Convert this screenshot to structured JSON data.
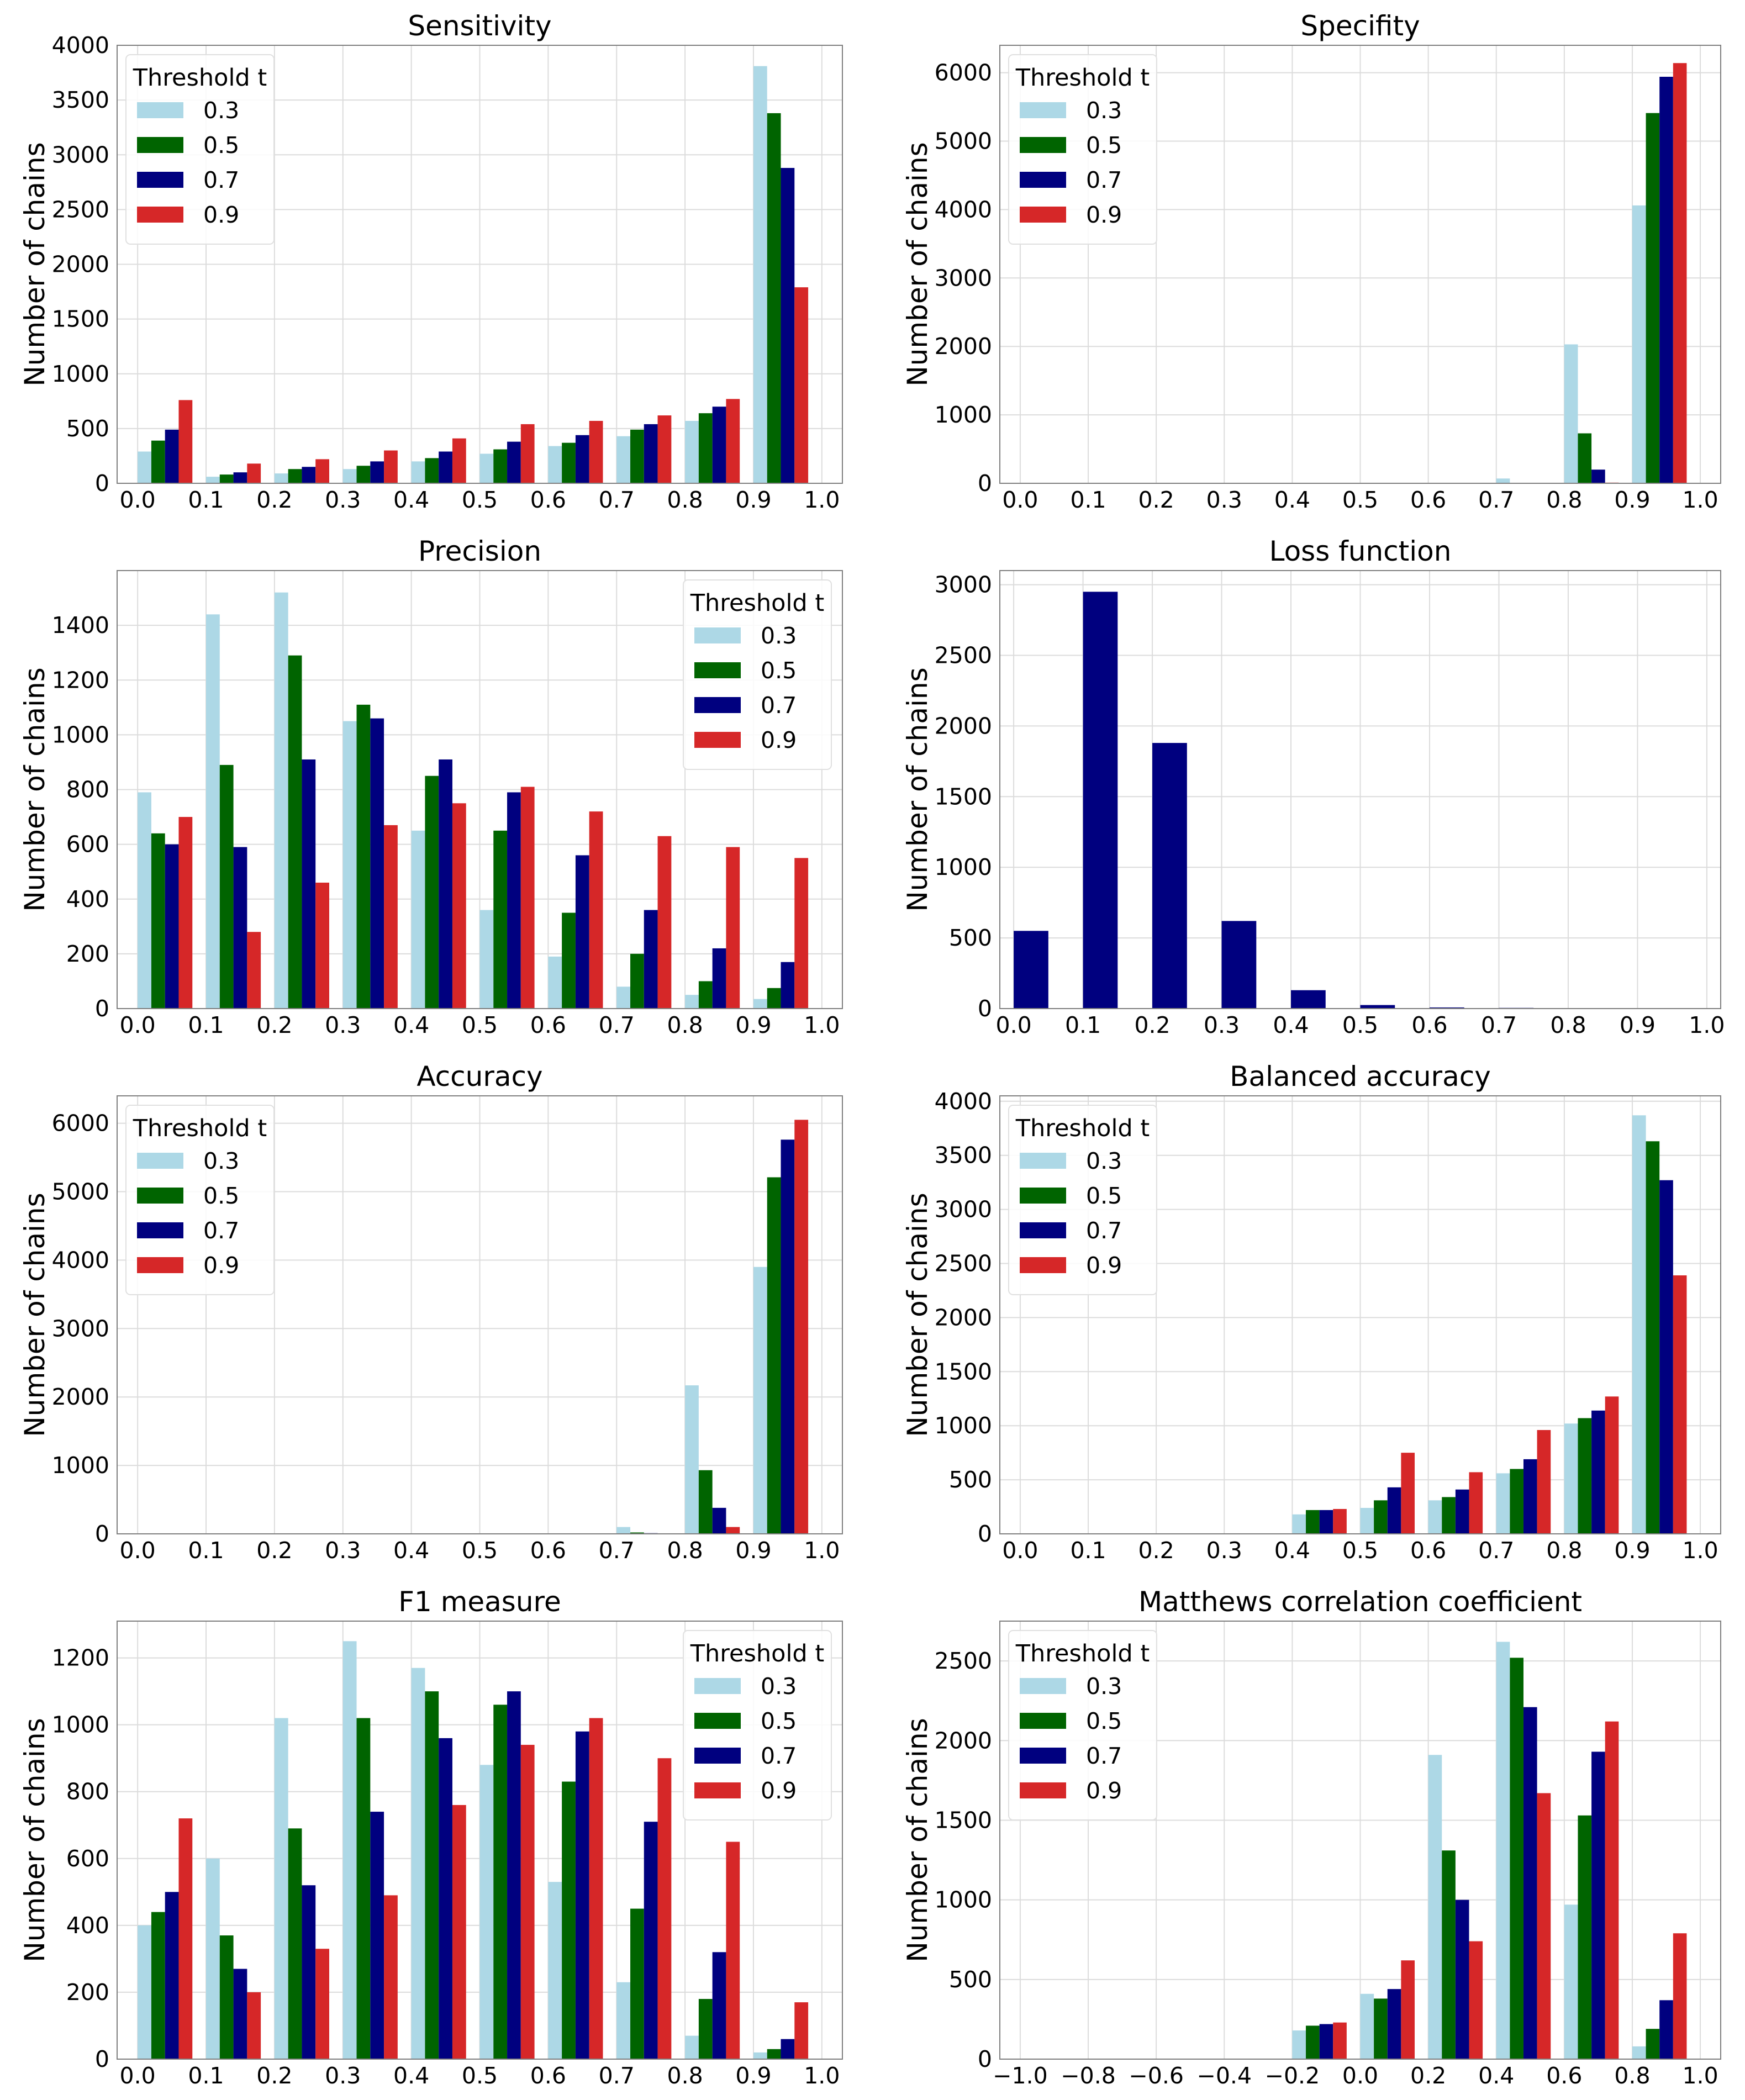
{
  "figure": {
    "ylabel": "Number of chains"
  },
  "chart_data": [
    {
      "type": "bar",
      "title": "Sensitivity",
      "ylabel": "Number of chains",
      "xlim": [
        -0.03,
        1.03
      ],
      "ylim": [
        0,
        4000
      ],
      "xticks": [
        "0.0",
        "0.1",
        "0.2",
        "0.3",
        "0.4",
        "0.5",
        "0.6",
        "0.7",
        "0.8",
        "0.9",
        "1.0"
      ],
      "xtick_values": [
        0,
        0.1,
        0.2,
        0.3,
        0.4,
        0.5,
        0.6,
        0.7,
        0.8,
        0.9,
        1.0
      ],
      "yticks": [
        0,
        500,
        1000,
        1500,
        2000,
        2500,
        3000,
        3500,
        4000
      ],
      "bin_starts": [
        0,
        0.1,
        0.2,
        0.3,
        0.4,
        0.5,
        0.6,
        0.7,
        0.8,
        0.9
      ],
      "bin_width": 0.1,
      "legend": {
        "title": "Threshold t",
        "position": "upper-left"
      },
      "series": [
        {
          "name": "0.3",
          "color": "#add8e6",
          "values": [
            290,
            60,
            90,
            130,
            200,
            270,
            340,
            430,
            570,
            3810
          ]
        },
        {
          "name": "0.5",
          "color": "#006400",
          "values": [
            390,
            80,
            130,
            160,
            230,
            310,
            370,
            490,
            640,
            3380
          ]
        },
        {
          "name": "0.7",
          "color": "#00007f",
          "values": [
            490,
            100,
            150,
            200,
            290,
            380,
            440,
            540,
            700,
            2880
          ]
        },
        {
          "name": "0.9",
          "color": "#d62728",
          "values": [
            760,
            180,
            220,
            300,
            410,
            540,
            570,
            620,
            770,
            1790
          ]
        }
      ]
    },
    {
      "type": "bar",
      "title": "Specifity",
      "ylabel": "Number of chains",
      "xlim": [
        -0.03,
        1.03
      ],
      "ylim": [
        0,
        6400
      ],
      "xticks": [
        "0.0",
        "0.1",
        "0.2",
        "0.3",
        "0.4",
        "0.5",
        "0.6",
        "0.7",
        "0.8",
        "0.9",
        "1.0"
      ],
      "xtick_values": [
        0,
        0.1,
        0.2,
        0.3,
        0.4,
        0.5,
        0.6,
        0.7,
        0.8,
        0.9,
        1.0
      ],
      "yticks": [
        0,
        1000,
        2000,
        3000,
        4000,
        5000,
        6000
      ],
      "bin_starts": [
        0,
        0.1,
        0.2,
        0.3,
        0.4,
        0.5,
        0.6,
        0.7,
        0.8,
        0.9
      ],
      "bin_width": 0.1,
      "legend": {
        "title": "Threshold t",
        "position": "upper-left"
      },
      "series": [
        {
          "name": "0.3",
          "color": "#add8e6",
          "values": [
            0,
            0,
            0,
            0,
            0,
            0,
            0,
            70,
            2030,
            4060
          ]
        },
        {
          "name": "0.5",
          "color": "#006400",
          "values": [
            0,
            0,
            0,
            0,
            0,
            0,
            0,
            0,
            730,
            5410
          ]
        },
        {
          "name": "0.7",
          "color": "#00007f",
          "values": [
            0,
            0,
            0,
            0,
            0,
            0,
            0,
            0,
            200,
            5940
          ]
        },
        {
          "name": "0.9",
          "color": "#d62728",
          "values": [
            0,
            0,
            0,
            0,
            0,
            0,
            0,
            0,
            10,
            6140
          ]
        }
      ]
    },
    {
      "type": "bar",
      "title": "Precision",
      "ylabel": "Number of chains",
      "xlim": [
        -0.03,
        1.03
      ],
      "ylim": [
        0,
        1600
      ],
      "xticks": [
        "0.0",
        "0.1",
        "0.2",
        "0.3",
        "0.4",
        "0.5",
        "0.6",
        "0.7",
        "0.8",
        "0.9",
        "1.0"
      ],
      "xtick_values": [
        0,
        0.1,
        0.2,
        0.3,
        0.4,
        0.5,
        0.6,
        0.7,
        0.8,
        0.9,
        1.0
      ],
      "yticks": [
        0,
        200,
        400,
        600,
        800,
        1000,
        1200,
        1400
      ],
      "bin_starts": [
        0,
        0.1,
        0.2,
        0.3,
        0.4,
        0.5,
        0.6,
        0.7,
        0.8,
        0.9
      ],
      "bin_width": 0.1,
      "legend": {
        "title": "Threshold t",
        "position": "upper-right"
      },
      "series": [
        {
          "name": "0.3",
          "color": "#add8e6",
          "values": [
            790,
            1440,
            1520,
            1050,
            650,
            360,
            190,
            80,
            50,
            35
          ]
        },
        {
          "name": "0.5",
          "color": "#006400",
          "values": [
            640,
            890,
            1290,
            1110,
            850,
            650,
            350,
            200,
            100,
            75
          ]
        },
        {
          "name": "0.7",
          "color": "#00007f",
          "values": [
            600,
            590,
            910,
            1060,
            910,
            790,
            560,
            360,
            220,
            170
          ]
        },
        {
          "name": "0.9",
          "color": "#d62728",
          "values": [
            700,
            280,
            460,
            670,
            750,
            810,
            720,
            630,
            590,
            550
          ]
        }
      ]
    },
    {
      "type": "bar",
      "title": "Loss function",
      "ylabel": "Number of chains",
      "xlim": [
        -0.02,
        1.02
      ],
      "ylim": [
        0,
        3100
      ],
      "xticks": [
        "0.0",
        "0.1",
        "0.2",
        "0.3",
        "0.4",
        "0.5",
        "0.6",
        "0.7",
        "0.8",
        "0.9",
        "1.0"
      ],
      "xtick_values": [
        0,
        0.1,
        0.2,
        0.3,
        0.4,
        0.5,
        0.6,
        0.7,
        0.8,
        0.9,
        1.0
      ],
      "yticks": [
        0,
        500,
        1000,
        1500,
        2000,
        2500,
        3000
      ],
      "bin_starts": [
        0,
        0.1,
        0.2,
        0.3,
        0.4,
        0.5,
        0.6,
        0.7,
        0.8,
        0.9
      ],
      "bin_width": 0.1,
      "bar_fraction": 0.5,
      "series": [
        {
          "name": "",
          "color": "#00007f",
          "values": [
            550,
            2950,
            1880,
            620,
            130,
            25,
            8,
            5,
            3,
            2
          ]
        }
      ]
    },
    {
      "type": "bar",
      "title": "Accuracy",
      "ylabel": "Number of chains",
      "xlim": [
        -0.03,
        1.03
      ],
      "ylim": [
        0,
        6400
      ],
      "xticks": [
        "0.0",
        "0.1",
        "0.2",
        "0.3",
        "0.4",
        "0.5",
        "0.6",
        "0.7",
        "0.8",
        "0.9",
        "1.0"
      ],
      "xtick_values": [
        0,
        0.1,
        0.2,
        0.3,
        0.4,
        0.5,
        0.6,
        0.7,
        0.8,
        0.9,
        1.0
      ],
      "yticks": [
        0,
        1000,
        2000,
        3000,
        4000,
        5000,
        6000
      ],
      "bin_starts": [
        0,
        0.1,
        0.2,
        0.3,
        0.4,
        0.5,
        0.6,
        0.7,
        0.8,
        0.9
      ],
      "bin_width": 0.1,
      "legend": {
        "title": "Threshold t",
        "position": "upper-left"
      },
      "series": [
        {
          "name": "0.3",
          "color": "#add8e6",
          "values": [
            0,
            0,
            0,
            0,
            0,
            0,
            0,
            100,
            2170,
            3900
          ]
        },
        {
          "name": "0.5",
          "color": "#006400",
          "values": [
            0,
            0,
            0,
            0,
            0,
            0,
            0,
            20,
            930,
            5210
          ]
        },
        {
          "name": "0.7",
          "color": "#00007f",
          "values": [
            0,
            0,
            0,
            0,
            0,
            0,
            0,
            10,
            380,
            5760
          ]
        },
        {
          "name": "0.9",
          "color": "#d62728",
          "values": [
            0,
            0,
            0,
            0,
            0,
            0,
            0,
            5,
            100,
            6050
          ]
        }
      ]
    },
    {
      "type": "bar",
      "title": "Balanced accuracy",
      "ylabel": "Number of chains",
      "xlim": [
        -0.03,
        1.03
      ],
      "ylim": [
        0,
        4050
      ],
      "xticks": [
        "0.0",
        "0.1",
        "0.2",
        "0.3",
        "0.4",
        "0.5",
        "0.6",
        "0.7",
        "0.8",
        "0.9",
        "1.0"
      ],
      "xtick_values": [
        0,
        0.1,
        0.2,
        0.3,
        0.4,
        0.5,
        0.6,
        0.7,
        0.8,
        0.9,
        1.0
      ],
      "yticks": [
        0,
        500,
        1000,
        1500,
        2000,
        2500,
        3000,
        3500,
        4000
      ],
      "bin_starts": [
        0,
        0.1,
        0.2,
        0.3,
        0.4,
        0.5,
        0.6,
        0.7,
        0.8,
        0.9
      ],
      "bin_width": 0.1,
      "legend": {
        "title": "Threshold t",
        "position": "upper-left"
      },
      "series": [
        {
          "name": "0.3",
          "color": "#add8e6",
          "values": [
            0,
            0,
            0,
            0,
            180,
            240,
            310,
            560,
            1020,
            3870
          ]
        },
        {
          "name": "0.5",
          "color": "#006400",
          "values": [
            0,
            0,
            0,
            0,
            220,
            310,
            340,
            600,
            1070,
            3630
          ]
        },
        {
          "name": "0.7",
          "color": "#00007f",
          "values": [
            0,
            0,
            0,
            0,
            220,
            430,
            410,
            690,
            1140,
            3270
          ]
        },
        {
          "name": "0.9",
          "color": "#d62728",
          "values": [
            0,
            0,
            0,
            0,
            230,
            750,
            570,
            960,
            1270,
            2390
          ]
        }
      ]
    },
    {
      "type": "bar",
      "title": "F1 measure",
      "ylabel": "Number of chains",
      "xlim": [
        -0.03,
        1.03
      ],
      "ylim": [
        0,
        1310
      ],
      "xticks": [
        "0.0",
        "0.1",
        "0.2",
        "0.3",
        "0.4",
        "0.5",
        "0.6",
        "0.7",
        "0.8",
        "0.9",
        "1.0"
      ],
      "xtick_values": [
        0,
        0.1,
        0.2,
        0.3,
        0.4,
        0.5,
        0.6,
        0.7,
        0.8,
        0.9,
        1.0
      ],
      "yticks": [
        0,
        200,
        400,
        600,
        800,
        1000,
        1200
      ],
      "bin_starts": [
        0,
        0.1,
        0.2,
        0.3,
        0.4,
        0.5,
        0.6,
        0.7,
        0.8,
        0.9
      ],
      "bin_width": 0.1,
      "legend": {
        "title": "Threshold t",
        "position": "upper-right"
      },
      "series": [
        {
          "name": "0.3",
          "color": "#add8e6",
          "values": [
            400,
            600,
            1020,
            1250,
            1170,
            880,
            530,
            230,
            70,
            20
          ]
        },
        {
          "name": "0.5",
          "color": "#006400",
          "values": [
            440,
            370,
            690,
            1020,
            1100,
            1060,
            830,
            450,
            180,
            30
          ]
        },
        {
          "name": "0.7",
          "color": "#00007f",
          "values": [
            500,
            270,
            520,
            740,
            960,
            1100,
            980,
            710,
            320,
            60
          ]
        },
        {
          "name": "0.9",
          "color": "#d62728",
          "values": [
            720,
            200,
            330,
            490,
            760,
            940,
            1020,
            900,
            650,
            170
          ]
        }
      ]
    },
    {
      "type": "bar",
      "title": "Matthews correlation coefficient",
      "ylabel": "Number of chains",
      "xlim": [
        -1.06,
        1.06
      ],
      "ylim": [
        0,
        2750
      ],
      "xticks": [
        "−1.0",
        "−0.8",
        "−0.6",
        "−0.4",
        "−0.2",
        "0.0",
        "0.2",
        "0.4",
        "0.6",
        "0.8",
        "1.0"
      ],
      "xtick_values": [
        -1,
        -0.8,
        -0.6,
        -0.4,
        -0.2,
        0,
        0.2,
        0.4,
        0.6,
        0.8,
        1.0
      ],
      "yticks": [
        0,
        500,
        1000,
        1500,
        2000,
        2500
      ],
      "bin_starts": [
        -1,
        -0.8,
        -0.6,
        -0.4,
        -0.2,
        0,
        0.2,
        0.4,
        0.6,
        0.8
      ],
      "bin_width": 0.2,
      "legend": {
        "title": "Threshold t",
        "position": "upper-left"
      },
      "series": [
        {
          "name": "0.3",
          "color": "#add8e6",
          "values": [
            0,
            0,
            0,
            0,
            180,
            410,
            1910,
            2620,
            970,
            80
          ]
        },
        {
          "name": "0.5",
          "color": "#006400",
          "values": [
            0,
            0,
            0,
            0,
            210,
            380,
            1310,
            2520,
            1530,
            190
          ]
        },
        {
          "name": "0.7",
          "color": "#00007f",
          "values": [
            0,
            0,
            0,
            0,
            220,
            440,
            1000,
            2210,
            1930,
            370
          ]
        },
        {
          "name": "0.9",
          "color": "#d62728",
          "values": [
            0,
            0,
            0,
            0,
            230,
            620,
            740,
            1670,
            2120,
            790
          ]
        }
      ]
    }
  ]
}
